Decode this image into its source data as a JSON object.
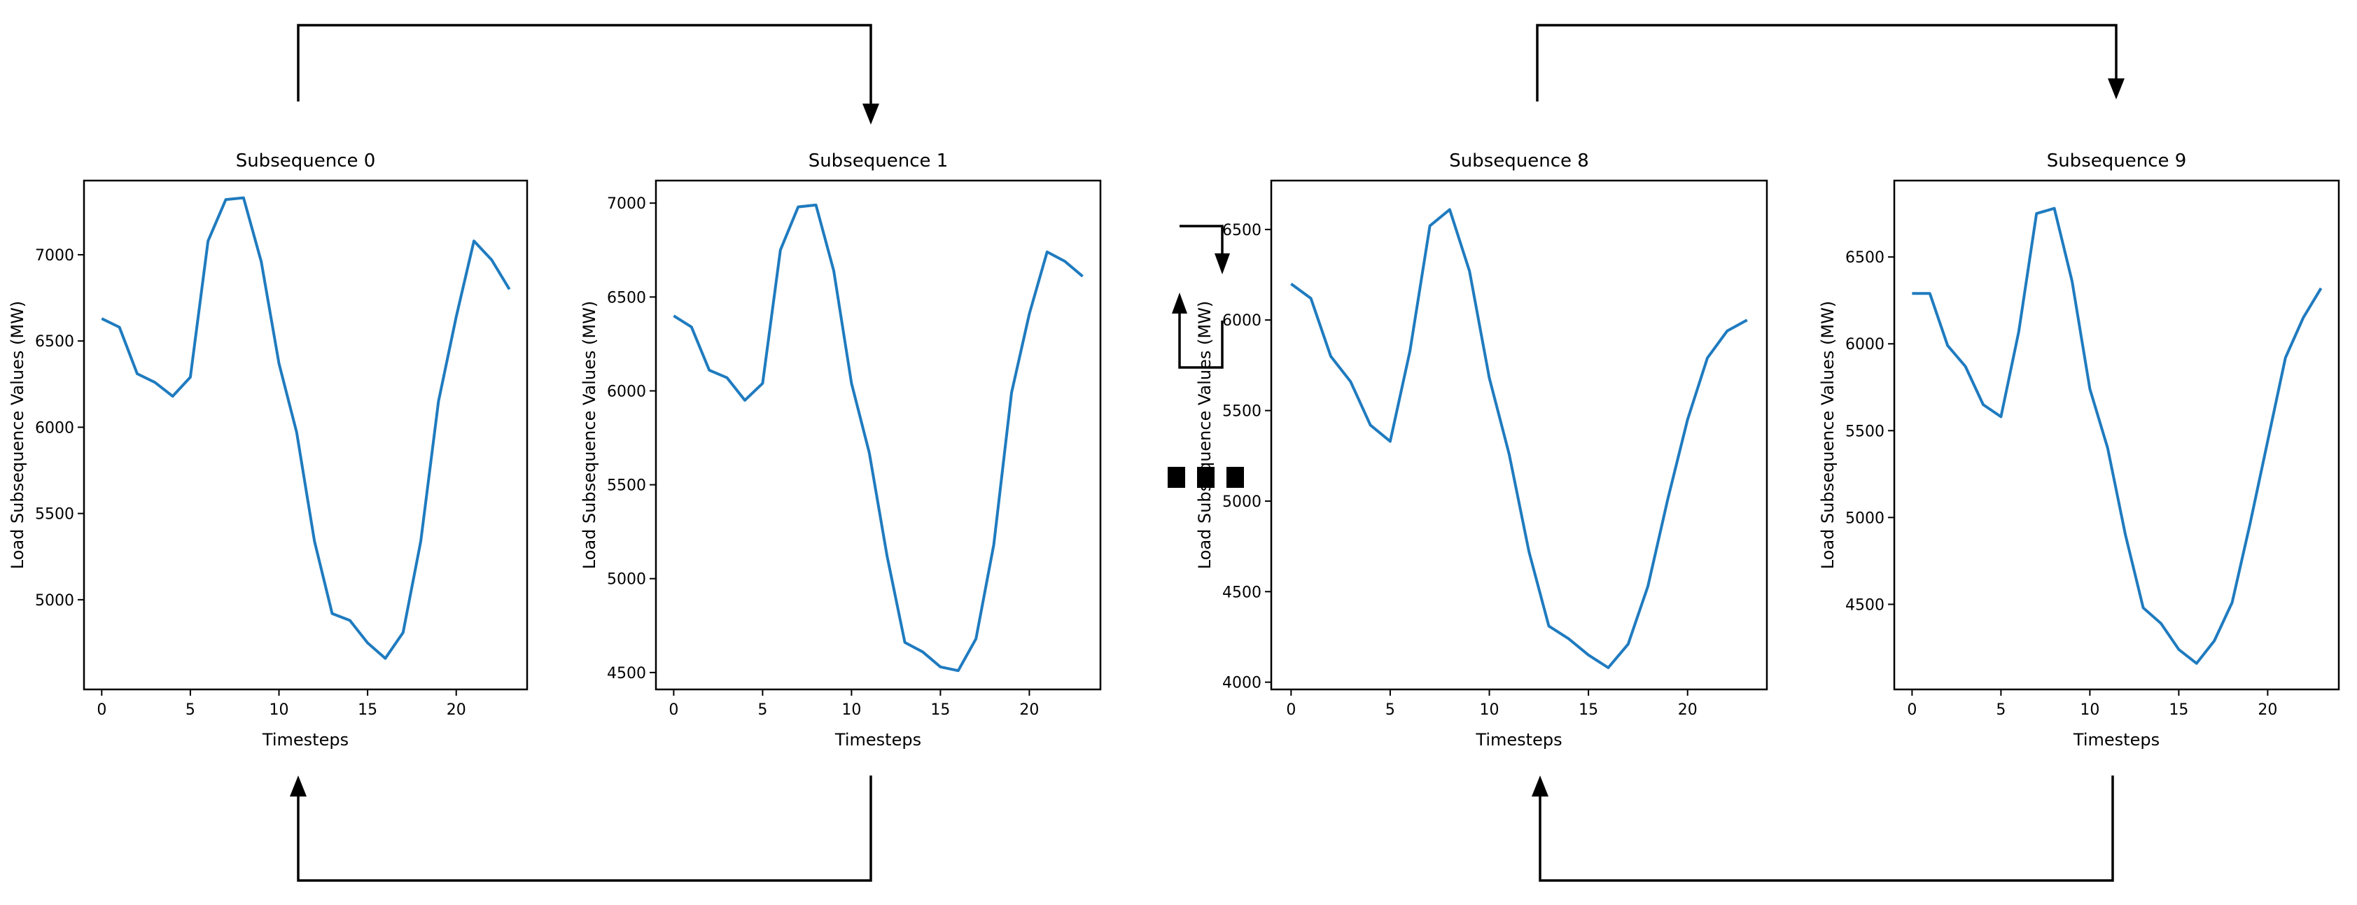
{
  "line_color": "#1f7bbf",
  "chart_data": [
    {
      "type": "line",
      "title": "Subsequence 0",
      "xlabel": "Timesteps",
      "ylabel": "Load Subsequence Values (MW)",
      "x": [
        0,
        1,
        2,
        3,
        4,
        5,
        6,
        7,
        8,
        9,
        10,
        11,
        12,
        13,
        14,
        15,
        16,
        17,
        18,
        19,
        20,
        21,
        22,
        23
      ],
      "values": [
        6630,
        6580,
        6310,
        6260,
        6180,
        6290,
        7080,
        7320,
        7330,
        6960,
        6370,
        5970,
        5340,
        4920,
        4880,
        4750,
        4660,
        4810,
        5340,
        6150,
        6640,
        7080,
        6970,
        6800
      ],
      "xlim": [
        -1,
        24
      ],
      "ylim": [
        4480,
        7430
      ],
      "xticks": [
        0,
        5,
        10,
        15,
        20
      ],
      "yticks": [
        5000,
        5500,
        6000,
        6500,
        7000
      ]
    },
    {
      "type": "line",
      "title": "Subsequence 1",
      "xlabel": "Timesteps",
      "ylabel": "Load Subsequence Values (MW)",
      "x": [
        0,
        1,
        2,
        3,
        4,
        5,
        6,
        7,
        8,
        9,
        10,
        11,
        12,
        13,
        14,
        15,
        16,
        17,
        18,
        19,
        20,
        21,
        22,
        23
      ],
      "values": [
        6400,
        6340,
        6110,
        6070,
        5950,
        6040,
        6750,
        6980,
        6990,
        6640,
        6040,
        5670,
        5120,
        4660,
        4610,
        4530,
        4510,
        4680,
        5180,
        5990,
        6410,
        6740,
        6690,
        6610
      ],
      "xlim": [
        -1,
        24
      ],
      "ylim": [
        4410,
        7120
      ],
      "xticks": [
        0,
        5,
        10,
        15,
        20
      ],
      "yticks": [
        4500,
        5000,
        5500,
        6000,
        6500,
        7000
      ]
    },
    {
      "type": "line",
      "title": "Subsequence 8",
      "xlabel": "Timesteps",
      "ylabel": "Load Subsequence Values (MW)",
      "x": [
        0,
        1,
        2,
        3,
        4,
        5,
        6,
        7,
        8,
        9,
        10,
        11,
        12,
        13,
        14,
        15,
        16,
        17,
        18,
        19,
        20,
        21,
        22,
        23
      ],
      "values": [
        6200,
        6120,
        5800,
        5660,
        5420,
        5330,
        5830,
        6520,
        6610,
        6270,
        5680,
        5260,
        4720,
        4310,
        4240,
        4150,
        4080,
        4210,
        4530,
        5010,
        5450,
        5790,
        5940,
        6000
      ],
      "xlim": [
        -1,
        24
      ],
      "ylim": [
        3960,
        6770
      ],
      "xticks": [
        0,
        5,
        10,
        15,
        20
      ],
      "yticks": [
        4000,
        4500,
        5000,
        5500,
        6000,
        6500
      ]
    },
    {
      "type": "line",
      "title": "Subsequence 9",
      "xlabel": "Timesteps",
      "ylabel": "Load Subsequence Values (MW)",
      "x": [
        0,
        1,
        2,
        3,
        4,
        5,
        6,
        7,
        8,
        9,
        10,
        11,
        12,
        13,
        14,
        15,
        16,
        17,
        18,
        19,
        20,
        21,
        22,
        23
      ],
      "values": [
        6290,
        6290,
        5990,
        5870,
        5650,
        5580,
        6070,
        6750,
        6780,
        6360,
        5740,
        5400,
        4900,
        4480,
        4390,
        4240,
        4160,
        4290,
        4510,
        4960,
        5440,
        5920,
        6150,
        6320
      ],
      "xlim": [
        -1,
        24
      ],
      "ylim": [
        4010,
        6940
      ],
      "xticks": [
        0,
        5,
        10,
        15,
        20
      ],
      "yticks": [
        4500,
        5000,
        5500,
        6000,
        6500
      ]
    }
  ]
}
